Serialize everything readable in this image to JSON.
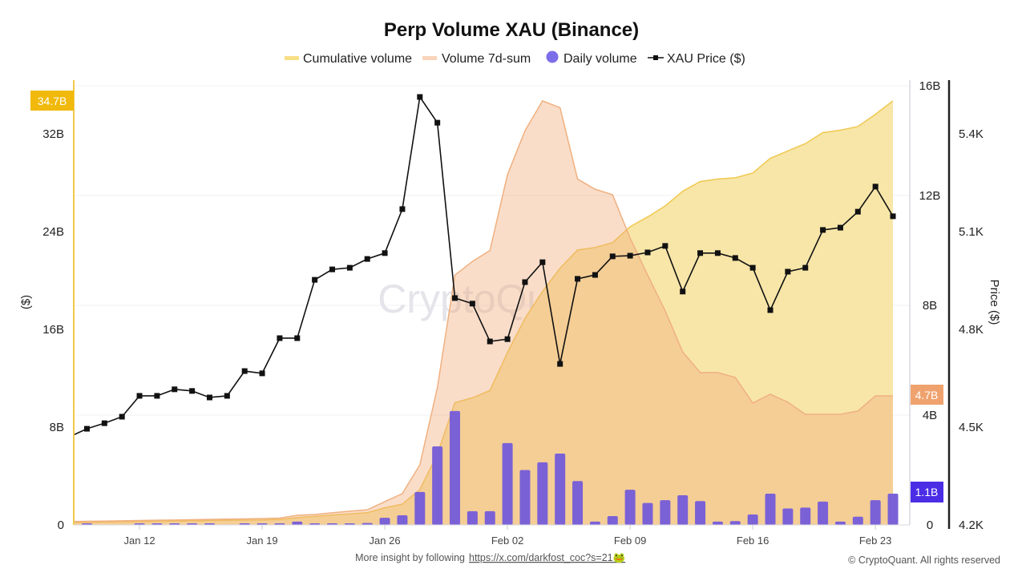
{
  "chart_data": {
    "type": "bar+area+line",
    "title": "Perp Volume XAU (Binance)",
    "legend": {
      "placement": "top",
      "entries": [
        "Cumulative volume",
        "Volume 7d-sum",
        "Daily volume",
        "XAU Price ($)"
      ]
    },
    "x": [
      "Jan 08",
      "Jan 09",
      "Jan 10",
      "Jan 11",
      "Jan 12",
      "Jan 13",
      "Jan 14",
      "Jan 15",
      "Jan 16",
      "Jan 17",
      "Jan 18",
      "Jan 19",
      "Jan 20",
      "Jan 21",
      "Jan 22",
      "Jan 23",
      "Jan 24",
      "Jan 25",
      "Jan 26",
      "Jan 27",
      "Jan 28",
      "Jan 29",
      "Jan 30",
      "Jan 31",
      "Feb 01",
      "Feb 02",
      "Feb 03",
      "Feb 04",
      "Feb 05",
      "Feb 06",
      "Feb 07",
      "Feb 08",
      "Feb 09",
      "Feb 10",
      "Feb 11",
      "Feb 12",
      "Feb 13",
      "Feb 14",
      "Feb 15",
      "Feb 16",
      "Feb 17",
      "Feb 18",
      "Feb 19",
      "Feb 20",
      "Feb 21",
      "Feb 22",
      "Feb 23",
      "Feb 24"
    ],
    "x_ticks": [
      "Jan 12",
      "Jan 19",
      "Jan 26",
      "Feb 02",
      "Feb 09",
      "Feb 16",
      "Feb 23"
    ],
    "series": [
      {
        "name": "Cumulative volume",
        "type": "area",
        "axis": "left",
        "unit": "B",
        "color": "#f0c850",
        "fill": "#f7e6a8",
        "values": [
          0.2,
          0.22,
          0.24,
          0.26,
          0.28,
          0.3,
          0.32,
          0.34,
          0.36,
          0.38,
          0.39,
          0.4,
          0.45,
          0.6,
          0.7,
          0.8,
          0.9,
          1.0,
          1.4,
          1.7,
          2.9,
          5.8,
          10.0,
          10.4,
          11.0,
          14.1,
          16.9,
          19.1,
          21.0,
          22.5,
          22.7,
          23.1,
          24.4,
          25.2,
          26.1,
          27.3,
          28.1,
          28.3,
          28.4,
          28.8,
          30.0,
          30.6,
          31.2,
          32.1,
          32.3,
          32.6,
          33.6,
          34.7
        ]
      },
      {
        "name": "Volume 7d-sum",
        "type": "area",
        "axis": "right",
        "unit": "B",
        "color": "#f0b080",
        "fill": "rgba(240,170,120,0.4)",
        "values": [
          0.12,
          0.13,
          0.14,
          0.15,
          0.16,
          0.17,
          0.18,
          0.19,
          0.2,
          0.21,
          0.22,
          0.23,
          0.25,
          0.35,
          0.38,
          0.44,
          0.5,
          0.55,
          0.85,
          1.14,
          2.19,
          5.0,
          9.1,
          9.6,
          10.0,
          12.76,
          14.36,
          15.45,
          15.2,
          12.6,
          12.23,
          12.03,
          10.45,
          9.1,
          7.8,
          6.3,
          5.55,
          5.55,
          5.37,
          4.44,
          4.76,
          4.47,
          4.03,
          4.03,
          4.03,
          4.15,
          4.7,
          4.7
        ]
      },
      {
        "name": "Daily volume",
        "type": "bar",
        "axis": "right",
        "unit": "B",
        "color": "#7b61d6",
        "values": [
          0.03,
          0.03,
          0,
          0,
          0.03,
          0.03,
          0.03,
          0.03,
          0.03,
          0,
          0.01,
          0.02,
          0.05,
          0.12,
          0.06,
          0.06,
          0.05,
          0.07,
          0.26,
          0.35,
          1.2,
          2.86,
          4.15,
          0.5,
          0.5,
          2.98,
          2.0,
          2.28,
          2.6,
          1.6,
          0.12,
          0.32,
          1.28,
          0.8,
          0.9,
          1.08,
          0.87,
          0.12,
          0.14,
          0.38,
          1.14,
          0.6,
          0.63,
          0.85,
          0.12,
          0.3,
          0.9,
          1.14
        ]
      },
      {
        "name": "XAU Price ($)",
        "type": "line",
        "axis": "price",
        "color": "#111111",
        "values": [
          4470,
          4495,
          4512,
          4532,
          4596,
          4596,
          4616,
          4611,
          4591,
          4596,
          4672,
          4665,
          4773,
          4773,
          4952,
          4984,
          4989,
          5016,
          5034,
          5169,
          5513,
          5434,
          4896,
          4879,
          4763,
          4770,
          4945,
          5006,
          4694,
          4955,
          4967,
          5024,
          5026,
          5036,
          5056,
          4916,
          5034,
          5034,
          5019,
          4989,
          4859,
          4977,
          4989,
          5105,
          5112,
          5161,
          5238,
          5147
        ]
      }
    ],
    "axes": {
      "left": {
        "label": "($)",
        "ticks": [
          "0",
          "8B",
          "16B",
          "24B",
          "32B"
        ],
        "range": [
          0,
          36.5
        ],
        "badge": "34.7B",
        "badge_color": "#f0b90b"
      },
      "right": {
        "label": "",
        "ticks": [
          "0",
          "4B",
          "8B",
          "12B",
          "16B"
        ],
        "range": [
          0,
          16.2
        ],
        "badges": [
          {
            "text": "4.7B",
            "color": "#f0a26e"
          },
          {
            "text": "1.1B",
            "color": "#4b2de6"
          }
        ]
      },
      "price": {
        "label": "Price ($)",
        "ticks": [
          "4.2K",
          "4.5K",
          "4.8K",
          "5.1K",
          "5.4K"
        ],
        "range": [
          4200,
          5550
        ]
      }
    },
    "grid": true
  },
  "watermark": "CryptoQuant",
  "footer": {
    "insight_text": "More insight by following",
    "link": "https://x.com/darkfost_coc?s=21🐸",
    "copyright": "© CryptoQuant. All rights reserved"
  }
}
